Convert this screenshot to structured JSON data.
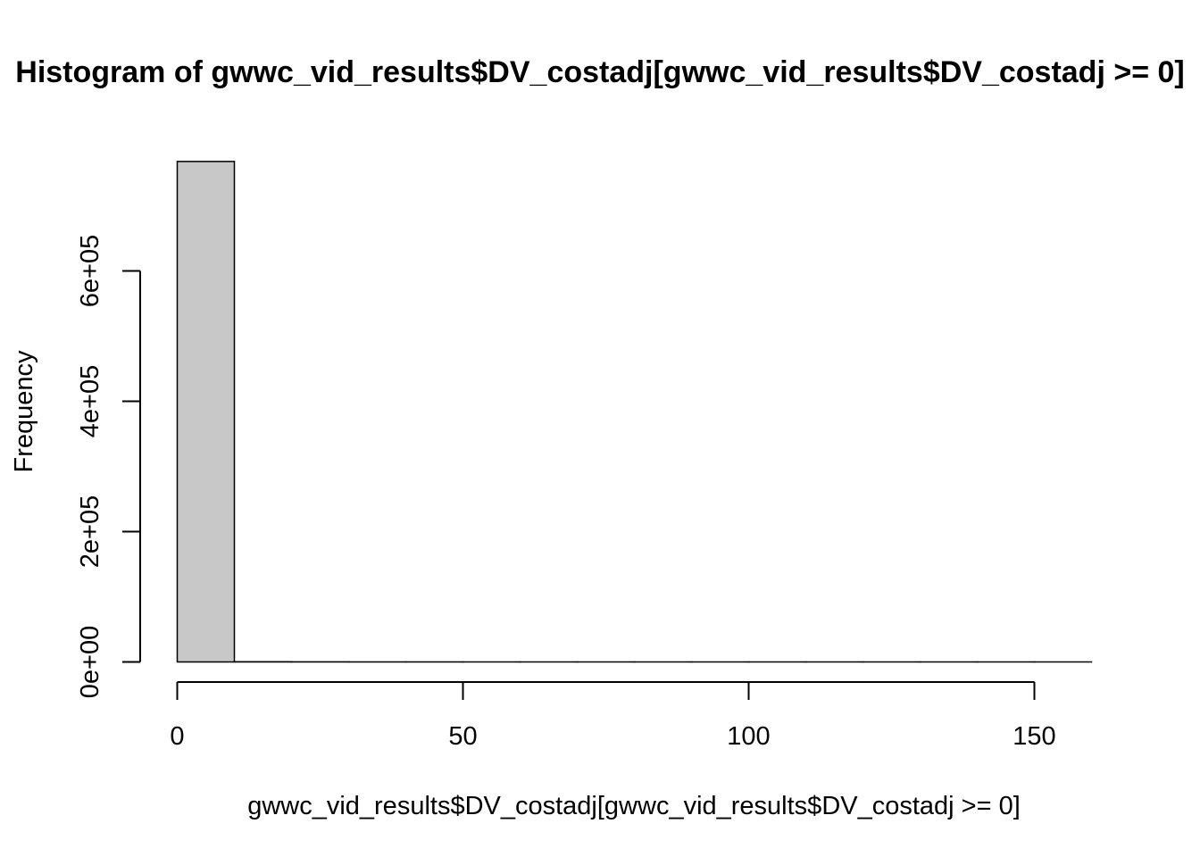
{
  "chart_data": {
    "type": "bar",
    "title": "Histogram of gwwc_vid_results$DV_costadj[gwwc_vid_results$DV_costadj >= 0]",
    "xlabel": "gwwc_vid_results$DV_costadj[gwwc_vid_results$DV_costadj >= 0]",
    "ylabel": "Frequency",
    "bin_width": 10,
    "bins": [
      {
        "start": 0,
        "end": 10,
        "count": 768000
      },
      {
        "start": 10,
        "end": 20,
        "count": 300
      },
      {
        "start": 20,
        "end": 30,
        "count": 150
      },
      {
        "start": 30,
        "end": 40,
        "count": 50
      },
      {
        "start": 40,
        "end": 50,
        "count": 20
      },
      {
        "start": 50,
        "end": 60,
        "count": 10
      },
      {
        "start": 60,
        "end": 70,
        "count": 5
      },
      {
        "start": 70,
        "end": 80,
        "count": 3
      },
      {
        "start": 80,
        "end": 90,
        "count": 2
      },
      {
        "start": 90,
        "end": 100,
        "count": 2
      },
      {
        "start": 100,
        "end": 110,
        "count": 1
      },
      {
        "start": 110,
        "end": 120,
        "count": 1
      },
      {
        "start": 120,
        "end": 130,
        "count": 1
      },
      {
        "start": 130,
        "end": 140,
        "count": 1
      },
      {
        "start": 140,
        "end": 150,
        "count": 1
      },
      {
        "start": 150,
        "end": 160,
        "count": 1
      }
    ],
    "xlim": [
      0,
      160
    ],
    "ylim": [
      0,
      780000
    ],
    "x_ticks": [
      0,
      50,
      100,
      150
    ],
    "x_tick_labels": [
      "0",
      "50",
      "100",
      "150"
    ],
    "y_ticks": [
      0,
      200000,
      400000,
      600000
    ],
    "y_tick_labels": [
      "0e+00",
      "2e+05",
      "4e+05",
      "6e+05"
    ],
    "bar_fill": "#c8c8c8",
    "bar_stroke": "#000000",
    "grid": false,
    "legend": "none"
  }
}
